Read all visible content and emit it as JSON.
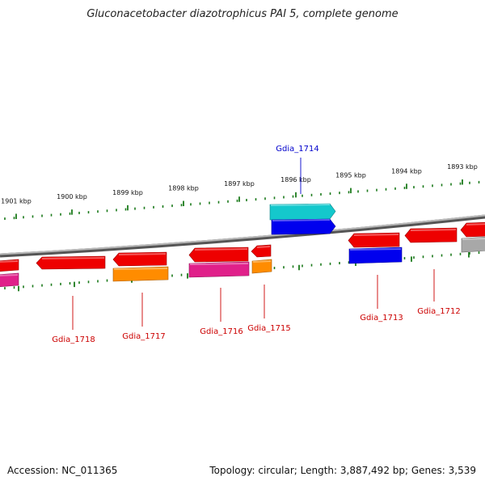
{
  "title": "Gluconacetobacter diazotrophicus PAI 5, complete genome",
  "footer": {
    "accession": "Accession: NC_011365",
    "summary": "Topology: circular; Length: 3,887,492 bp; Genes: 3,539"
  },
  "colors": {
    "backbone": "#808080",
    "tick": "#1b7a1b",
    "label_red": "#cc0000",
    "label_blue": "#0000cc",
    "red": "#ee0000",
    "magenta": "#e0208a",
    "orange": "#ff8c00",
    "cyan": "#14c8cc",
    "blue": "#0000ee",
    "gray": "#a8a8a8"
  },
  "kbp_labels": [
    "1901 kbp",
    "1900 kbp",
    "1899 kbp",
    "1898 kbp",
    "1897 kbp",
    "1896 kbp",
    "1895 kbp",
    "1894 kbp",
    "1893 kbp"
  ],
  "gene_labels": [
    {
      "name": "Gdia_1718",
      "color": "red"
    },
    {
      "name": "Gdia_1717",
      "color": "red"
    },
    {
      "name": "Gdia_1716",
      "color": "red"
    },
    {
      "name": "Gdia_1715",
      "color": "red"
    },
    {
      "name": "Gdia_1714",
      "color": "blue"
    },
    {
      "name": "Gdia_1713",
      "color": "red"
    },
    {
      "name": "Gdia_1712",
      "color": "red"
    }
  ],
  "features": [
    {
      "name": "feature-red-edge-left",
      "color": "red",
      "dir": "none"
    },
    {
      "name": "feature-red-1718",
      "color": "red",
      "dir": "left"
    },
    {
      "name": "feature-red-1717",
      "color": "red",
      "dir": "left"
    },
    {
      "name": "feature-red-1716",
      "color": "red",
      "dir": "left"
    },
    {
      "name": "feature-red-1715",
      "color": "red",
      "dir": "left"
    },
    {
      "name": "feature-red-1713",
      "color": "red",
      "dir": "left"
    },
    {
      "name": "feature-red-1712",
      "color": "red",
      "dir": "left"
    },
    {
      "name": "feature-red-edge-right",
      "color": "red",
      "dir": "left"
    },
    {
      "name": "feature-cyan-1714",
      "color": "cyan",
      "dir": "right"
    },
    {
      "name": "feature-blue-1714",
      "color": "blue",
      "dir": "right"
    },
    {
      "name": "feature-magenta-edge-left",
      "color": "magenta",
      "dir": "none"
    },
    {
      "name": "feature-orange-1717",
      "color": "orange",
      "dir": "none"
    },
    {
      "name": "feature-magenta-1716",
      "color": "magenta",
      "dir": "none"
    },
    {
      "name": "feature-orange-1715",
      "color": "orange",
      "dir": "none"
    },
    {
      "name": "feature-blue-1713",
      "color": "blue",
      "dir": "none"
    },
    {
      "name": "feature-gray-edge-right",
      "color": "gray",
      "dir": "none"
    }
  ]
}
